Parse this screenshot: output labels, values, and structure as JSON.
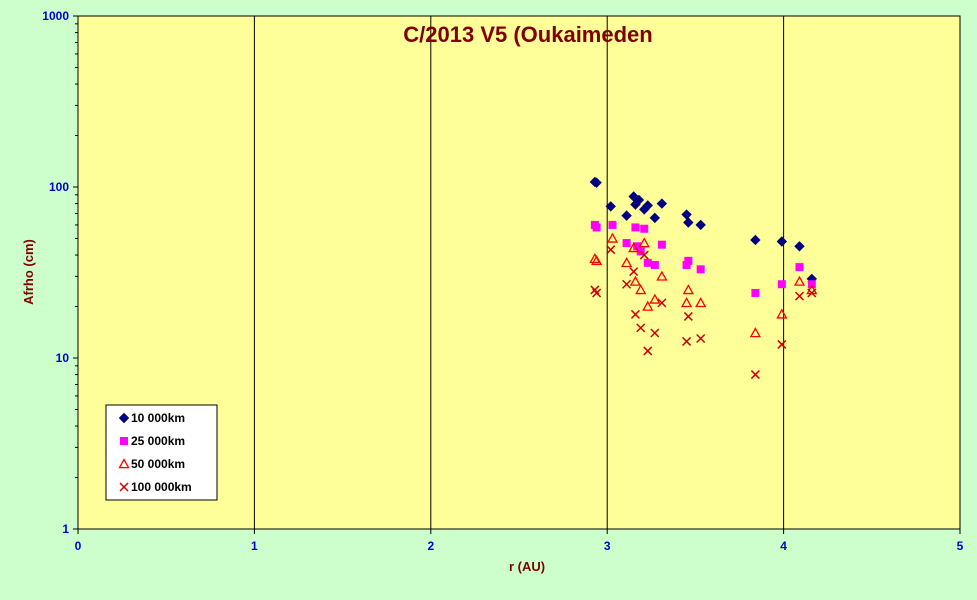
{
  "chart_data": {
    "type": "scatter",
    "title": "C/2013 V5 (Oukaimeden",
    "xlabel": "r (AU)",
    "ylabel": "Afrho (cm)",
    "xlim": [
      0,
      5
    ],
    "ylim": [
      1,
      1000
    ],
    "yscale": "log",
    "x_ticks": [
      "0",
      "1",
      "2",
      "3",
      "4",
      "5"
    ],
    "y_ticks": [
      "1",
      "10",
      "100",
      "1000"
    ],
    "legend_position": "bottom-left",
    "grid": "vertical",
    "plot_background": "#ffff99",
    "page_background": "#ccffcc",
    "series": [
      {
        "name": "10 000km",
        "marker": "diamond",
        "color": "#000080",
        "points": [
          [
            2.93,
            107
          ],
          [
            2.94,
            106
          ],
          [
            3.02,
            77
          ],
          [
            3.11,
            68
          ],
          [
            3.15,
            88
          ],
          [
            3.16,
            79
          ],
          [
            3.18,
            84
          ],
          [
            3.21,
            74
          ],
          [
            3.23,
            78
          ],
          [
            3.27,
            66
          ],
          [
            3.31,
            80
          ],
          [
            3.45,
            69
          ],
          [
            3.46,
            62
          ],
          [
            3.53,
            60
          ],
          [
            3.84,
            49
          ],
          [
            3.99,
            48
          ],
          [
            4.09,
            45
          ],
          [
            4.16,
            29
          ]
        ]
      },
      {
        "name": "25 000km",
        "marker": "square",
        "color": "#ff00ff",
        "points": [
          [
            2.93,
            60
          ],
          [
            2.94,
            58
          ],
          [
            3.03,
            60
          ],
          [
            3.11,
            47
          ],
          [
            3.16,
            58
          ],
          [
            3.17,
            45
          ],
          [
            3.19,
            42
          ],
          [
            3.21,
            57
          ],
          [
            3.23,
            36
          ],
          [
            3.27,
            35
          ],
          [
            3.31,
            46
          ],
          [
            3.45,
            35
          ],
          [
            3.46,
            37
          ],
          [
            3.53,
            33
          ],
          [
            3.84,
            24
          ],
          [
            3.99,
            27
          ],
          [
            4.09,
            34
          ],
          [
            4.16,
            27
          ]
        ]
      },
      {
        "name": "50 000km",
        "marker": "triangle-open",
        "color": "#ff0000",
        "points": [
          [
            2.93,
            38
          ],
          [
            2.94,
            37
          ],
          [
            3.03,
            50
          ],
          [
            3.11,
            36
          ],
          [
            3.15,
            44
          ],
          [
            3.16,
            28
          ],
          [
            3.19,
            25
          ],
          [
            3.21,
            47
          ],
          [
            3.23,
            20
          ],
          [
            3.27,
            22
          ],
          [
            3.31,
            30
          ],
          [
            3.45,
            21
          ],
          [
            3.46,
            25
          ],
          [
            3.53,
            21
          ],
          [
            3.84,
            14
          ],
          [
            3.99,
            18
          ],
          [
            4.09,
            28
          ],
          [
            4.16,
            25
          ]
        ]
      },
      {
        "name": "100 000km",
        "marker": "x",
        "color": "#cc0000",
        "points": [
          [
            2.93,
            25
          ],
          [
            2.94,
            24
          ],
          [
            3.02,
            43
          ],
          [
            3.11,
            27
          ],
          [
            3.15,
            32
          ],
          [
            3.16,
            18
          ],
          [
            3.19,
            15
          ],
          [
            3.21,
            40
          ],
          [
            3.23,
            11
          ],
          [
            3.27,
            14
          ],
          [
            3.31,
            21
          ],
          [
            3.45,
            12.5
          ],
          [
            3.46,
            17.5
          ],
          [
            3.53,
            13
          ],
          [
            3.84,
            8
          ],
          [
            3.99,
            12
          ],
          [
            4.09,
            23
          ],
          [
            4.16,
            24
          ]
        ]
      }
    ]
  }
}
